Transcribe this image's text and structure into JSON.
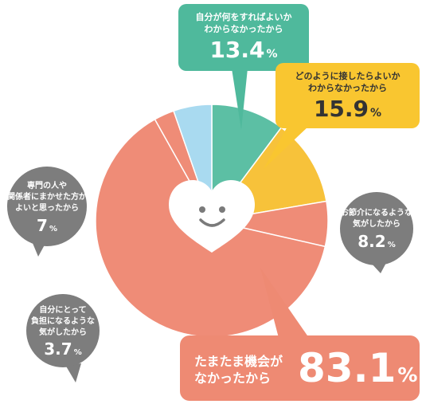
{
  "chart_data": {
    "type": "pie",
    "slices": [
      {
        "label": "自分が何をすればよいか\nわからなかったから",
        "value": 13.4,
        "color": "#5cbfa4"
      },
      {
        "label": "どのように接したらよいか\nわからなかったから",
        "value": 15.9,
        "color": "#f7c23a"
      },
      {
        "label": "お節介になるような\n気がしたから",
        "value": 8.2,
        "color": "#ef8c77"
      },
      {
        "label": "たまたま機会が\nなかったから",
        "value": 83.1,
        "color": "#ef8c77"
      },
      {
        "label": "自分にとって\n負担になるような\n気がしたから",
        "value": 3.7,
        "color": "#ef8c77"
      },
      {
        "label": "専門の人や\n関係者にまかせた方が\nよいと思ったから",
        "value": 7,
        "color": "#a9daf0"
      }
    ],
    "unit": "%"
  },
  "colors": {
    "green": "#4fb99c",
    "yellow": "#f9c630",
    "salmon": "#ee8a73",
    "gray": "#7d7d7d",
    "light_blue": "#a9daf0"
  },
  "center_icon": "smiling-heart-icon"
}
